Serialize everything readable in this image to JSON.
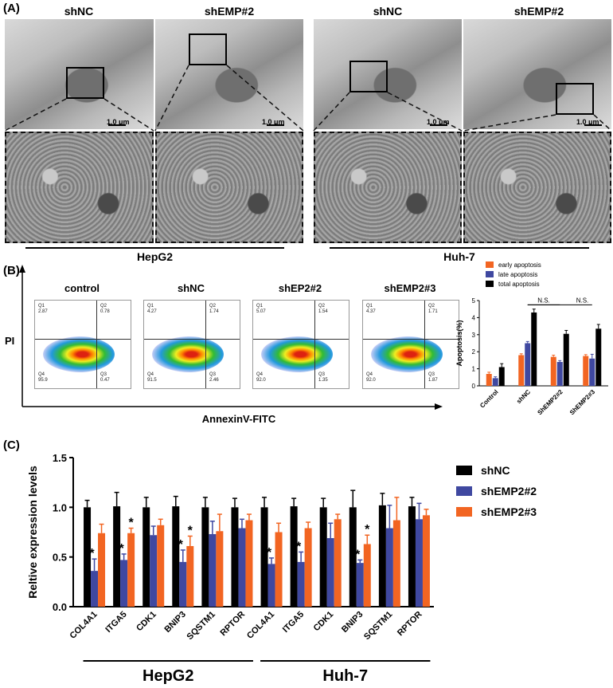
{
  "panels": {
    "a": "(A)",
    "b": "(B)",
    "c": "(C)"
  },
  "panel_a": {
    "columns": [
      "shNC",
      "shEMP#2",
      "shNC",
      "shEMP#2"
    ],
    "scale": "1.0 μm",
    "groups": [
      "HepG2",
      "Huh-7"
    ]
  },
  "panel_b": {
    "facs": [
      {
        "title": "control",
        "q1_label": "Q1",
        "q1": "2.87",
        "q2_label": "Q2",
        "q2": "0.78",
        "q4_label": "Q4",
        "q4": "95.9",
        "q3_label": "Q3",
        "q3": "0.47"
      },
      {
        "title": "shNC",
        "q1_label": "Q1",
        "q1": "4.27",
        "q2_label": "Q2",
        "q2": "1.74",
        "q4_label": "Q4",
        "q4": "91.5",
        "q3_label": "Q3",
        "q3": "2.46"
      },
      {
        "title": "shEP2#2",
        "q1_label": "Q1",
        "q1": "5.07",
        "q2_label": "Q2",
        "q2": "1.54",
        "q4_label": "Q4",
        "q4": "92.0",
        "q3_label": "Q3",
        "q3": "1.35"
      },
      {
        "title": "shEMP2#3",
        "q1_label": "Q1",
        "q1": "4.37",
        "q2_label": "Q2",
        "q2": "1.71",
        "q4_label": "Q4",
        "q4": "92.0",
        "q3_label": "Q3",
        "q3": "1.87"
      }
    ],
    "y_axis": "PI",
    "x_axis": "AnnexinV-FITC",
    "ns": "N.S."
  },
  "chart_data": [
    {
      "type": "bar",
      "ylabel": "Apoptosis(%)",
      "categories": [
        "Control",
        "shNC",
        "ShEMP2#2",
        "ShEMP2#3"
      ],
      "ylim": [
        0,
        5
      ],
      "yticks": [
        0,
        1,
        2,
        3,
        4,
        5
      ],
      "series": [
        {
          "name": "early apoptosis",
          "color": "#f26522",
          "values": [
            0.7,
            1.8,
            1.7,
            1.75
          ],
          "errors": [
            0.1,
            0.08,
            0.1,
            0.08
          ]
        },
        {
          "name": "late apoptosis",
          "color": "#3f48a0",
          "values": [
            0.45,
            2.5,
            1.4,
            1.6
          ],
          "errors": [
            0.08,
            0.1,
            0.08,
            0.25
          ]
        },
        {
          "name": "total apoptosis",
          "color": "#000000",
          "values": [
            1.1,
            4.3,
            3.05,
            3.35
          ],
          "errors": [
            0.2,
            0.2,
            0.2,
            0.25
          ]
        }
      ],
      "annotations": [
        "N.S.",
        "N.S."
      ]
    },
    {
      "type": "bar",
      "ylabel": "Reltive expression levels",
      "categories": [
        "COL4A1",
        "ITGA5",
        "CDK1",
        "BNIP3",
        "SQSTM1",
        "RPTOR",
        "COL4A1",
        "ITGA5",
        "CDK1",
        "BNIP3",
        "SQSTM1",
        "RPTOR"
      ],
      "groups": [
        "HepG2",
        "Huh-7"
      ],
      "ylim": [
        0,
        1.5
      ],
      "yticks": [
        "0.0",
        "0.5",
        "1.0",
        "1.5"
      ],
      "series": [
        {
          "name": "shNC",
          "color": "#000000",
          "values": [
            1.0,
            1.01,
            1.0,
            1.01,
            1.0,
            1.0,
            1.0,
            1.01,
            1.0,
            1.0,
            1.02,
            1.01
          ],
          "errors": [
            0.07,
            0.14,
            0.1,
            0.1,
            0.1,
            0.09,
            0.1,
            0.08,
            0.09,
            0.17,
            0.12,
            0.09
          ]
        },
        {
          "name": "shEMP2#2",
          "color": "#3f48a0",
          "values": [
            0.36,
            0.47,
            0.72,
            0.45,
            0.73,
            0.79,
            0.43,
            0.45,
            0.69,
            0.44,
            0.79,
            0.88
          ],
          "errors": [
            0.12,
            0.06,
            0.09,
            0.12,
            0.13,
            0.09,
            0.06,
            0.1,
            0.15,
            0.03,
            0.23,
            0.16
          ]
        },
        {
          "name": "shEMP2#3",
          "color": "#f26522",
          "values": [
            0.74,
            0.74,
            0.82,
            0.61,
            0.76,
            0.87,
            0.75,
            0.79,
            0.88,
            0.63,
            0.87,
            0.92
          ],
          "errors": [
            0.09,
            0.05,
            0.06,
            0.1,
            0.17,
            0.06,
            0.09,
            0.06,
            0.05,
            0.09,
            0.23,
            0.06
          ]
        }
      ],
      "significance": [
        {
          "label": "*",
          "category": 0,
          "series": 1
        },
        {
          "label": "*",
          "category": 1,
          "series": 1
        },
        {
          "label": "*",
          "category": 1,
          "series": 2
        },
        {
          "label": "*",
          "category": 3,
          "series": 1
        },
        {
          "label": "*",
          "category": 3,
          "series": 2
        },
        {
          "label": "*",
          "category": 6,
          "series": 1
        },
        {
          "label": "*",
          "category": 7,
          "series": 1
        },
        {
          "label": "*",
          "category": 9,
          "series": 1
        },
        {
          "label": "*",
          "category": 9,
          "series": 2
        }
      ]
    }
  ]
}
